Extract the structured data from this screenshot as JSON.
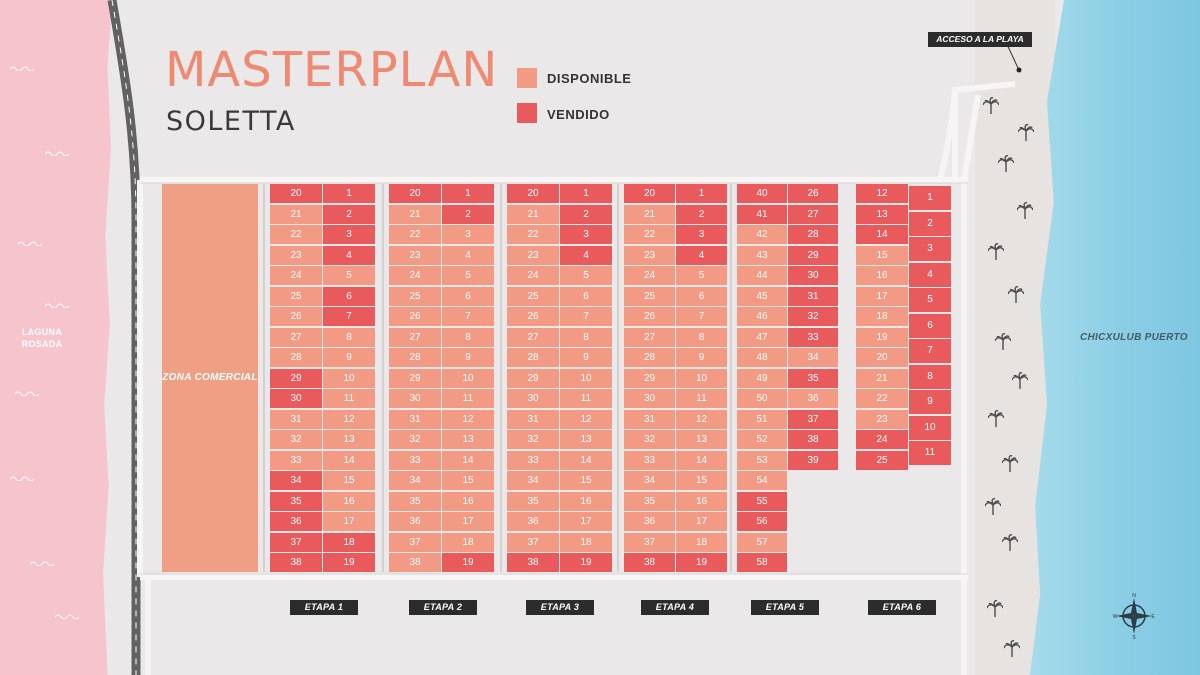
{
  "title": "MASTERPLAN",
  "subtitle": "SOLETTA",
  "legend": [
    {
      "label": "DISPONIBLE",
      "color": "#f29a83"
    },
    {
      "label": "VENDIDO",
      "color": "#e85a5b"
    }
  ],
  "colors": {
    "available": "#f29a83",
    "sold": "#e85a5b",
    "commercial": "#ef9f84",
    "road": "#6a6a6a",
    "lagoon": "#f6c4cb",
    "sea": "#88cde4"
  },
  "zone_commercial": "ZONA COMERCIAL",
  "lagoon_label": "LAGUNA ROSADA",
  "sea_label": "CHICXULUB PUERTO",
  "beach_access": "ACCESO A LA PLAYA",
  "icons": [
    "palm-tree-icon",
    "compass-rose-icon",
    "wave-icon"
  ],
  "compass": {
    "n": "N",
    "e": "E",
    "s": "S",
    "w": "W"
  },
  "etapas": [
    {
      "label": "ETAPA 1",
      "left_lots": [
        20,
        21,
        22,
        23,
        24,
        25,
        26,
        27,
        28,
        29,
        30,
        31,
        32,
        33,
        34,
        35,
        36,
        37,
        38
      ],
      "right_lots": [
        1,
        2,
        3,
        4,
        5,
        6,
        7,
        8,
        9,
        10,
        11,
        12,
        13,
        14,
        15,
        16,
        17,
        18,
        19
      ],
      "sold": [
        20,
        2,
        3,
        4,
        6,
        7,
        29,
        30,
        34,
        35,
        36,
        37,
        38,
        19,
        18,
        1
      ]
    },
    {
      "label": "ETAPA 2",
      "left_lots": [
        20,
        21,
        22,
        23,
        24,
        25,
        26,
        27,
        28,
        29,
        30,
        31,
        32,
        33,
        34,
        35,
        36,
        37,
        38
      ],
      "right_lots": [
        1,
        2,
        3,
        4,
        5,
        6,
        7,
        8,
        9,
        10,
        11,
        12,
        13,
        14,
        15,
        16,
        17,
        18,
        19
      ],
      "sold": [
        20,
        1,
        2,
        19
      ]
    },
    {
      "label": "ETAPA 3",
      "left_lots": [
        20,
        21,
        22,
        23,
        24,
        25,
        26,
        27,
        28,
        29,
        30,
        31,
        32,
        33,
        34,
        35,
        36,
        37,
        38
      ],
      "right_lots": [
        1,
        2,
        3,
        4,
        5,
        6,
        7,
        8,
        9,
        10,
        11,
        12,
        13,
        14,
        15,
        16,
        17,
        18,
        19
      ],
      "sold": [
        20,
        1,
        2,
        3,
        4,
        38,
        19
      ]
    },
    {
      "label": "ETAPA 4",
      "left_lots": [
        20,
        21,
        22,
        23,
        24,
        25,
        26,
        27,
        28,
        29,
        30,
        31,
        32,
        33,
        34,
        35,
        36,
        37,
        38
      ],
      "right_lots": [
        1,
        2,
        3,
        4,
        5,
        6,
        7,
        8,
        9,
        10,
        11,
        12,
        13,
        14,
        15,
        16,
        17,
        18,
        19
      ],
      "sold": [
        20,
        1,
        2,
        3,
        4,
        38,
        19
      ]
    },
    {
      "label": "ETAPA 5",
      "left_lots": [
        40,
        41,
        42,
        43,
        44,
        45,
        46,
        47,
        48,
        49,
        50,
        51,
        52,
        53,
        54,
        55,
        56,
        57,
        58
      ],
      "right_lots": [
        26,
        27,
        28,
        29,
        30,
        31,
        32,
        33,
        34,
        35,
        36,
        37,
        38,
        39
      ],
      "sold": [
        40,
        41,
        26,
        27,
        28,
        29,
        30,
        31,
        32,
        33,
        35,
        37,
        38,
        39,
        55,
        56,
        58
      ]
    },
    {
      "label": "ETAPA 6",
      "left_lots": [
        12,
        13,
        14,
        15,
        16,
        17,
        18,
        19,
        20,
        21,
        22,
        23,
        24,
        25
      ],
      "right_lots": [
        1,
        2,
        3,
        4,
        5,
        6,
        7,
        8,
        9,
        10,
        11
      ],
      "sold": [
        12,
        13,
        14,
        24,
        25,
        1,
        2,
        3,
        4,
        5,
        6,
        7,
        8,
        9,
        10,
        11
      ]
    }
  ]
}
